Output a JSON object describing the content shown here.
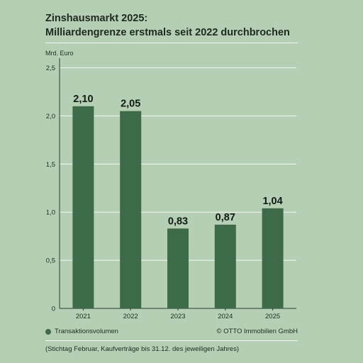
{
  "title_line1": "Zinshausmarkt 2025:",
  "title_line2": "Milliardengrenze erstmals seit 2022 durchbrochen",
  "legend_label": "Transaktionsvolumen",
  "source": "© OTTO Immobilien GmbH",
  "note": "(Stichtag Februar, Kaufverträge bis 31.12. des jeweiligen Jahres)",
  "colors": {
    "bar": "#3d6a48",
    "gridline": "#f4f8f2",
    "axis": "#2a3a2c"
  },
  "chart_data": {
    "type": "bar",
    "ylabel": "Mrd. Euro",
    "categories": [
      "2021",
      "2022",
      "2023",
      "2024",
      "2025"
    ],
    "values": [
      2.1,
      2.05,
      0.83,
      0.87,
      1.04
    ],
    "value_labels": [
      "2,10",
      "2,05",
      "0,83",
      "0,87",
      "1,04"
    ],
    "yticks": [
      0,
      0.5,
      1.0,
      1.5,
      2.0,
      2.5
    ],
    "ytick_labels": [
      "0",
      "0,5",
      "1,0",
      "1,5",
      "2,0",
      "2,5"
    ],
    "ylim": [
      0,
      2.6
    ],
    "grid": true,
    "series": [
      {
        "name": "Transaktionsvolumen"
      }
    ]
  }
}
